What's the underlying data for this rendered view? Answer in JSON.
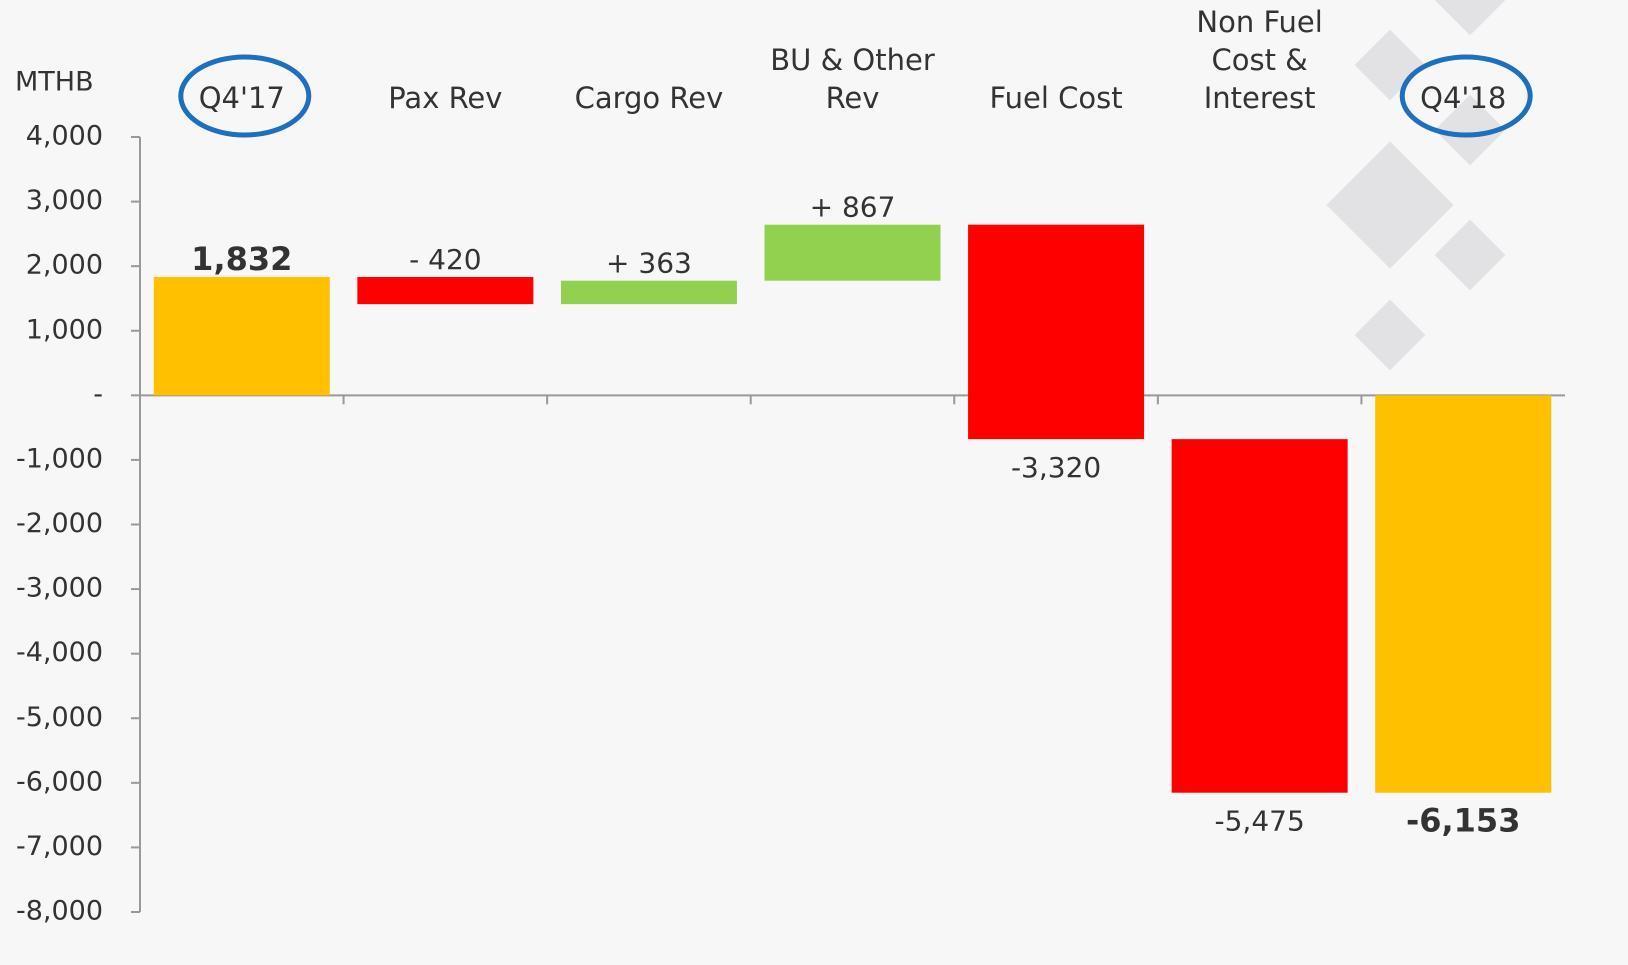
{
  "chart_data": {
    "type": "waterfall",
    "y_label": "MTHB",
    "categories": [
      "Q4'17",
      "Pax Rev",
      "Cargo Rev",
      "BU & Other Rev",
      "Fuel Cost",
      "Non Fuel Cost & Interest",
      "Q4'18"
    ],
    "values": [
      1832,
      -420,
      363,
      867,
      -3320,
      -5475,
      -6153
    ],
    "value_labels": [
      "1,832",
      "- 420",
      "+ 363",
      "+ 867",
      "-3,320",
      "-5,475",
      "-6,153"
    ],
    "colors": [
      "#ffc000",
      "#ff0000",
      "#92d050",
      "#92d050",
      "#ff0000",
      "#ff0000",
      "#ffc000"
    ],
    "ylim": [
      -8000,
      4000
    ],
    "yticks": [
      {
        "value": -8000,
        "label": "-8,000"
      },
      {
        "value": -7000,
        "label": "-7,000"
      },
      {
        "value": -6000,
        "label": "-6,000"
      },
      {
        "value": -5000,
        "label": "-5,000"
      },
      {
        "value": -4000,
        "label": "-4,000"
      },
      {
        "value": -3000,
        "label": "-3,000"
      },
      {
        "value": -2000,
        "label": "-2,000"
      },
      {
        "value": -1000,
        "label": "-1,000"
      },
      {
        "value": 0,
        "label": "-"
      },
      {
        "value": 1000,
        "label": "1,000"
      },
      {
        "value": 2000,
        "label": "2,000"
      },
      {
        "value": 3000,
        "label": "3,000"
      },
      {
        "value": 4000,
        "label": "4,000"
      }
    ],
    "grid": false
  }
}
